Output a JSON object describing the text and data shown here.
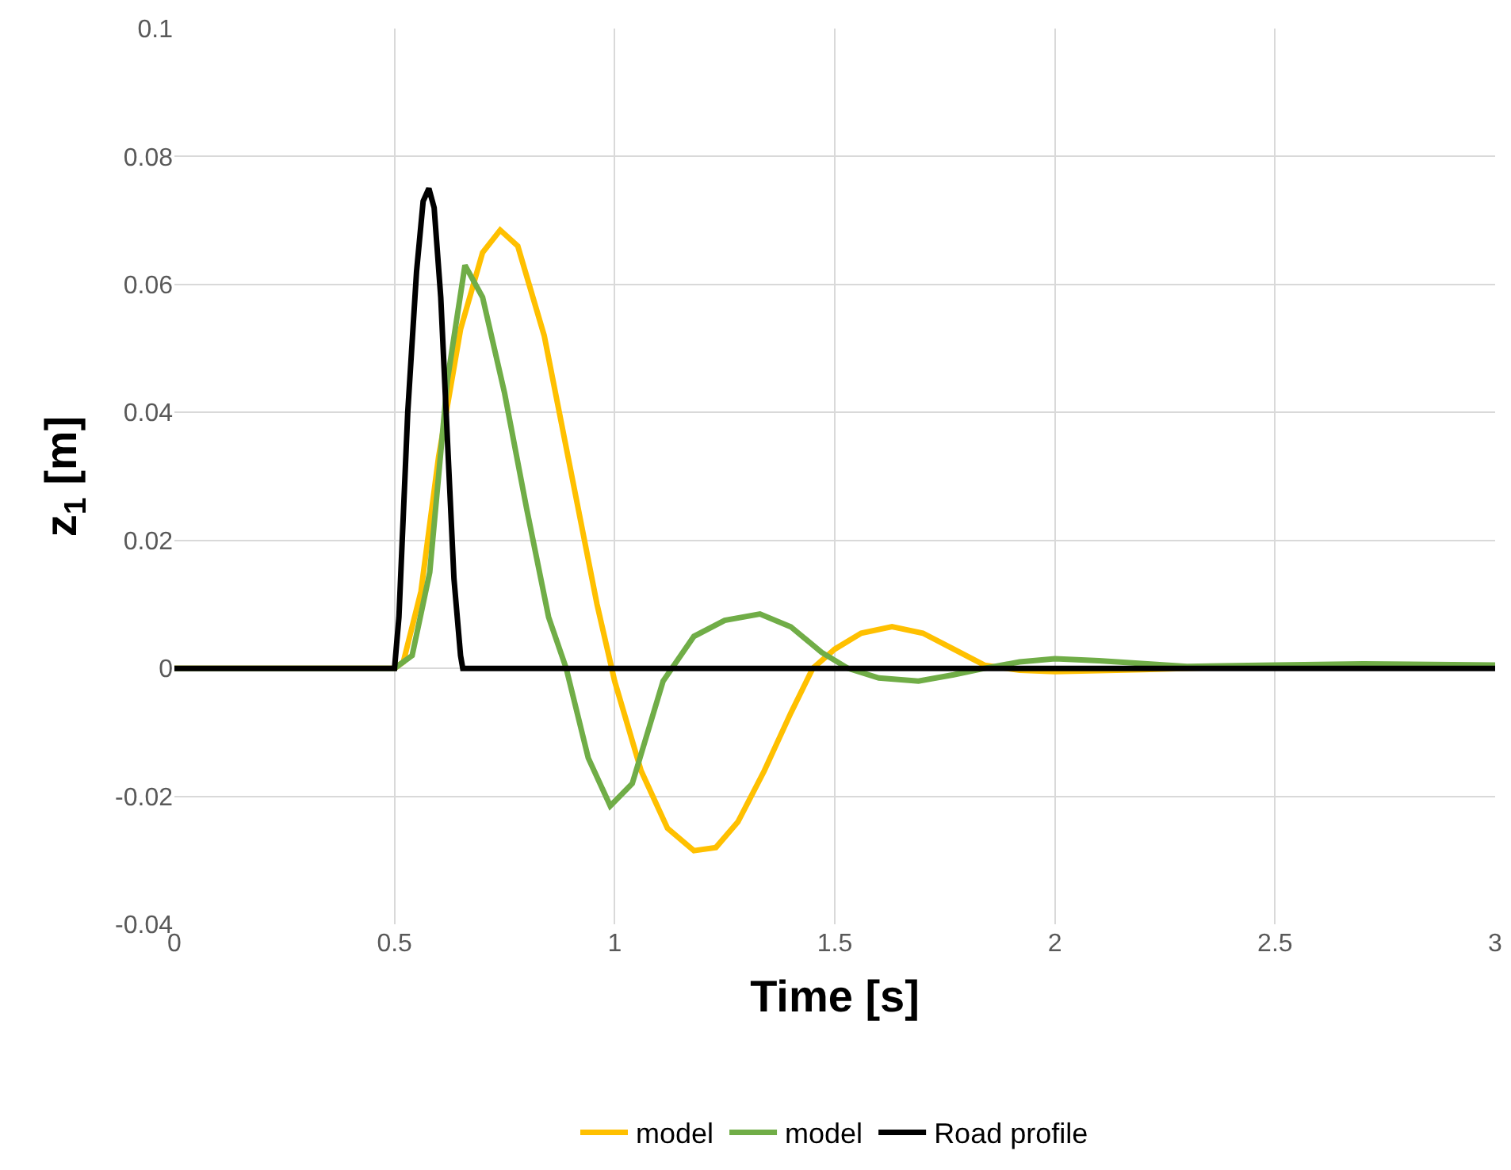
{
  "chart_data": {
    "type": "line",
    "xlabel": "Time [s]",
    "ylabel": "z$_{1}$ [m]",
    "xlim": [
      0,
      3
    ],
    "ylim": [
      -0.04,
      0.1
    ],
    "xticks": [
      0,
      0.5,
      1,
      1.5,
      2,
      2.5,
      3
    ],
    "yticks": [
      -0.04,
      -0.02,
      0,
      0.02,
      0.04,
      0.06,
      0.08,
      0.1
    ],
    "grid": true,
    "legend": "bottom",
    "marker": "none",
    "line_style": "solid",
    "series": [
      {
        "name": "model",
        "color": "#ffc000",
        "x": [
          0,
          0.5,
          0.52,
          0.56,
          0.6,
          0.65,
          0.7,
          0.74,
          0.78,
          0.84,
          0.9,
          0.96,
          1.0,
          1.06,
          1.12,
          1.18,
          1.23,
          1.28,
          1.34,
          1.4,
          1.45,
          1.5,
          1.56,
          1.63,
          1.7,
          1.77,
          1.84,
          1.92,
          2.0,
          2.2,
          2.4
        ],
        "values": [
          0,
          0,
          0.001,
          0.012,
          0.033,
          0.053,
          0.065,
          0.0685,
          0.066,
          0.052,
          0.031,
          0.01,
          -0.002,
          -0.016,
          -0.025,
          -0.0285,
          -0.028,
          -0.024,
          -0.016,
          -0.007,
          0,
          0.003,
          0.0055,
          0.0065,
          0.0055,
          0.003,
          0.0005,
          -0.0003,
          -0.0005,
          -0.0002,
          0.0002
        ]
      },
      {
        "name": "model",
        "color": "#70ad47",
        "x": [
          0,
          0.5,
          0.54,
          0.58,
          0.62,
          0.66,
          0.7,
          0.75,
          0.8,
          0.85,
          0.89,
          0.94,
          0.99,
          1.04,
          1.11,
          1.18,
          1.25,
          1.33,
          1.4,
          1.47,
          1.53,
          1.6,
          1.69,
          1.77,
          1.84,
          1.92,
          2.0,
          2.1,
          2.3,
          2.5,
          2.7,
          3.0
        ],
        "values": [
          0,
          0,
          0.002,
          0.015,
          0.045,
          0.063,
          0.058,
          0.043,
          0.025,
          0.008,
          0,
          -0.014,
          -0.0215,
          -0.018,
          -0.002,
          0.005,
          0.0075,
          0.0085,
          0.0065,
          0.0025,
          0,
          -0.0015,
          -0.002,
          -0.001,
          0,
          0.001,
          0.0015,
          0.0012,
          0.0003,
          0.0005,
          0.0007,
          0.0005
        ]
      },
      {
        "name": "Road profile",
        "color": "#000000",
        "x": [
          0,
          0.5,
          0.51,
          0.53,
          0.55,
          0.565,
          0.578,
          0.59,
          0.605,
          0.62,
          0.635,
          0.65,
          0.655,
          3.0
        ],
        "values": [
          0,
          0,
          0.008,
          0.04,
          0.062,
          0.073,
          0.075,
          0.072,
          0.058,
          0.036,
          0.014,
          0.002,
          0,
          0
        ]
      }
    ]
  }
}
